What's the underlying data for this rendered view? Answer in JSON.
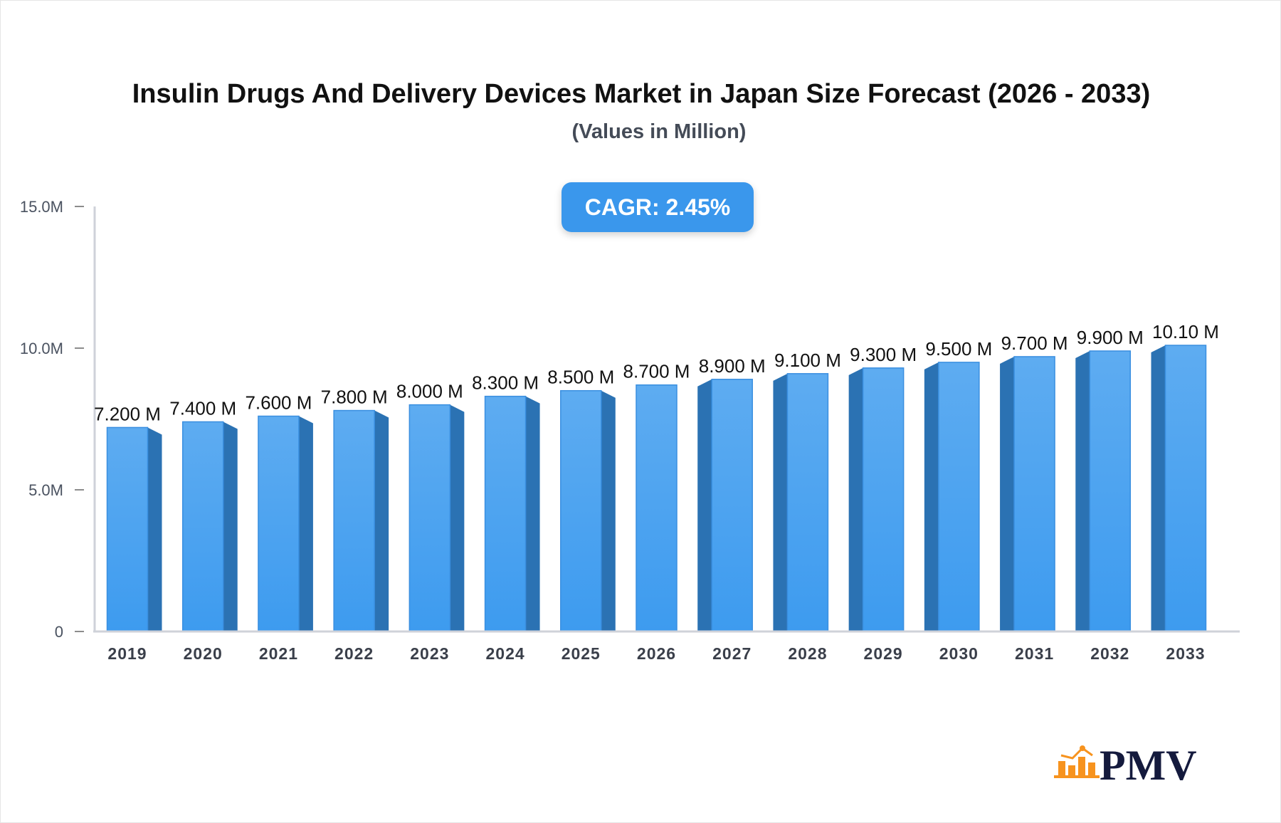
{
  "chart_data": {
    "type": "bar",
    "title": "Insulin Drugs And Delivery Devices Market in Japan Size Forecast (2026 - 2033)",
    "subtitle": "(Values in Million)",
    "categories": [
      "2019",
      "2020",
      "2021",
      "2022",
      "2023",
      "2024",
      "2025",
      "2026",
      "2027",
      "2028",
      "2029",
      "2030",
      "2031",
      "2032",
      "2033"
    ],
    "values": [
      7.2,
      7.4,
      7.6,
      7.8,
      8.0,
      8.3,
      8.5,
      8.7,
      8.9,
      9.1,
      9.3,
      9.5,
      9.7,
      9.9,
      10.1
    ],
    "data_labels": [
      "7.200 M",
      "7.400 M",
      "7.600 M",
      "7.800 M",
      "8.000 M",
      "8.300 M",
      "8.500 M",
      "8.700 M",
      "8.900 M",
      "9.100 M",
      "9.300 M",
      "9.500 M",
      "9.700 M",
      "9.900 M",
      "10.10 M"
    ],
    "ylim": [
      0,
      15
    ],
    "yticks": [
      0,
      5,
      10,
      15
    ],
    "ytick_labels": [
      "0",
      "5.0M",
      "10.0M",
      "15.0M"
    ],
    "xlabel": "",
    "ylabel": "",
    "grid": false,
    "bar_color": "#3d9bef",
    "bar_side_color": "#2b72b3"
  },
  "badge": {
    "label": "CAGR: 2.45%"
  },
  "logo": {
    "text": "PMV",
    "icon_color": "#f7931e",
    "text_color": "#141a3d"
  }
}
